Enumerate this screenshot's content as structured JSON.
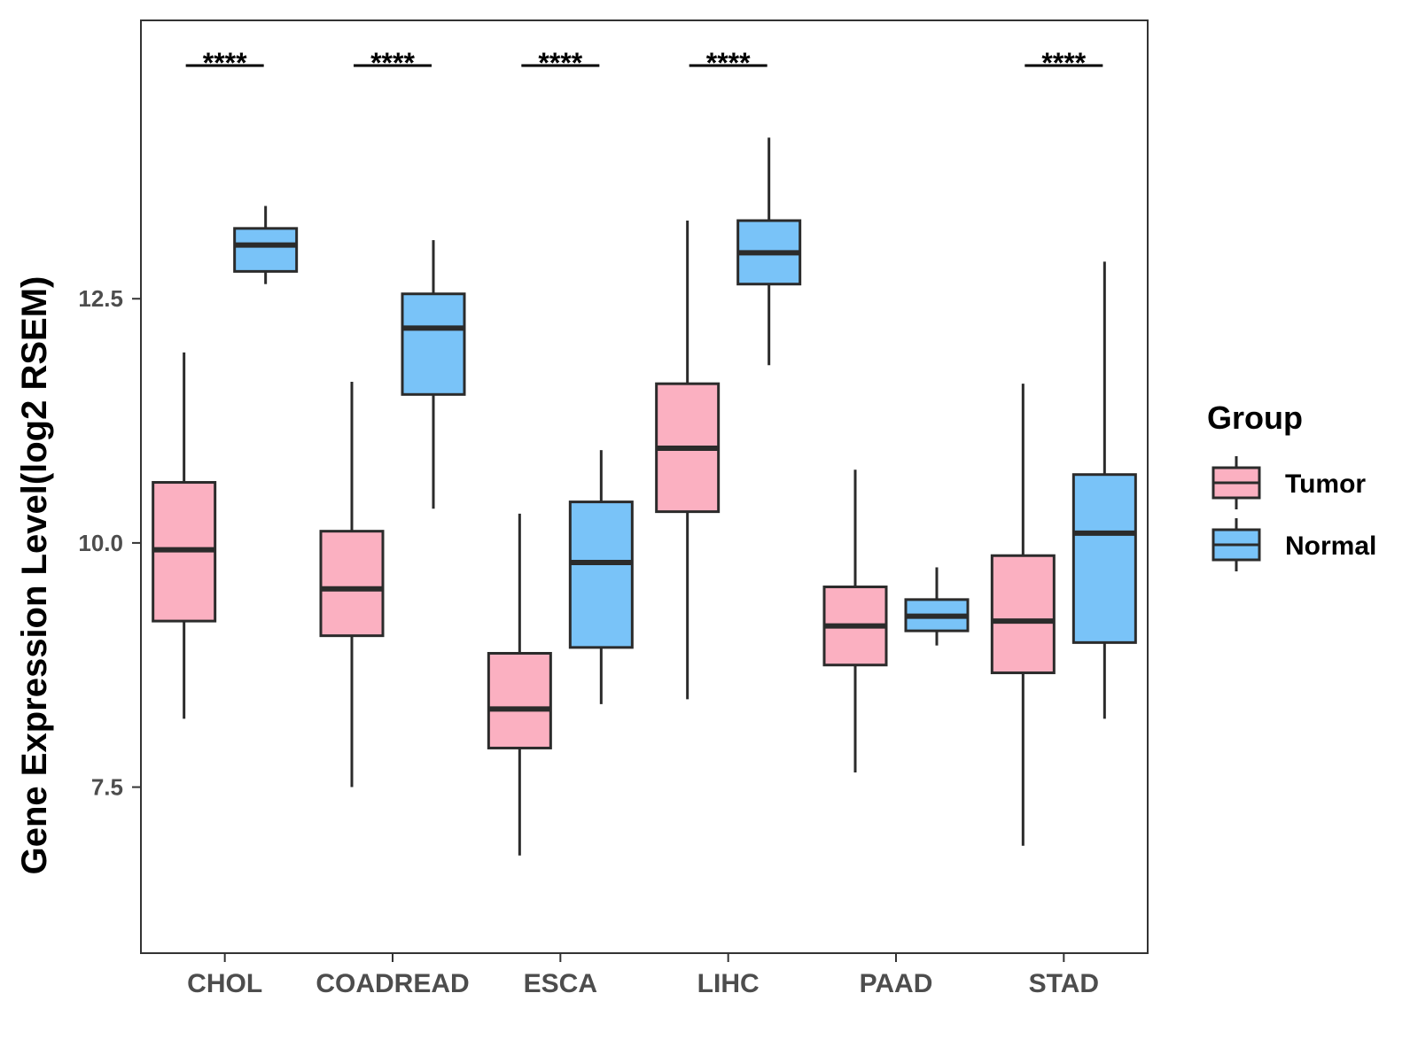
{
  "chart_data": {
    "type": "boxplot",
    "title": "",
    "xlabel": "",
    "ylabel": "Gene Expression Level(log2 RSEM)",
    "ylim": [
      5.8,
      15.35
    ],
    "yticks": [
      7.5,
      10.0,
      12.5
    ],
    "ytick_labels": [
      "7.5",
      "10.0",
      "12.5"
    ],
    "grid": false,
    "legend": {
      "title": "Group",
      "position": "right"
    },
    "categories": [
      "CHOL",
      "COADREAD",
      "ESCA",
      "LIHC",
      "PAAD",
      "STAD"
    ],
    "series": [
      {
        "name": "Tumor",
        "color": "#fbb0c1",
        "boxes": [
          {
            "whisker_low": 8.2,
            "q1": 9.2,
            "median": 9.93,
            "q3": 10.62,
            "whisker_high": 11.95
          },
          {
            "whisker_low": 7.5,
            "q1": 9.05,
            "median": 9.53,
            "q3": 10.12,
            "whisker_high": 11.65
          },
          {
            "whisker_low": 6.8,
            "q1": 7.9,
            "median": 8.3,
            "q3": 8.87,
            "whisker_high": 10.3
          },
          {
            "whisker_low": 8.4,
            "q1": 10.32,
            "median": 10.97,
            "q3": 11.63,
            "whisker_high": 13.3
          },
          {
            "whisker_low": 7.65,
            "q1": 8.75,
            "median": 9.15,
            "q3": 9.55,
            "whisker_high": 10.75
          },
          {
            "whisker_low": 6.9,
            "q1": 8.67,
            "median": 9.2,
            "q3": 9.87,
            "whisker_high": 11.63
          }
        ]
      },
      {
        "name": "Normal",
        "color": "#79c3f8",
        "boxes": [
          {
            "whisker_low": 12.65,
            "q1": 12.78,
            "median": 13.05,
            "q3": 13.22,
            "whisker_high": 13.45
          },
          {
            "whisker_low": 10.35,
            "q1": 11.52,
            "median": 12.2,
            "q3": 12.55,
            "whisker_high": 13.1
          },
          {
            "whisker_low": 8.35,
            "q1": 8.93,
            "median": 9.8,
            "q3": 10.42,
            "whisker_high": 10.95
          },
          {
            "whisker_low": 11.82,
            "q1": 12.65,
            "median": 12.97,
            "q3": 13.3,
            "whisker_high": 14.15
          },
          {
            "whisker_low": 8.95,
            "q1": 9.1,
            "median": 9.25,
            "q3": 9.42,
            "whisker_high": 9.75
          },
          {
            "whisker_low": 8.2,
            "q1": 8.98,
            "median": 10.1,
            "q3": 10.7,
            "whisker_high": 12.88
          }
        ]
      }
    ],
    "significance": [
      "****",
      "****",
      "****",
      "****",
      "",
      "****"
    ]
  }
}
